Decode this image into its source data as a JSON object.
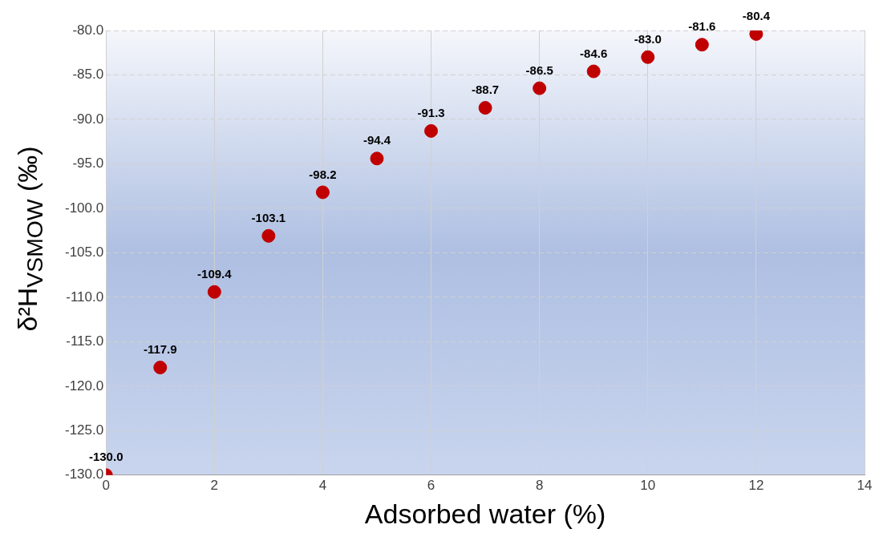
{
  "chart_data": {
    "type": "scatter",
    "xlabel": "Adsorbed water (%)",
    "ylabel": "δ²H$_{VSMOW}$ (‰)",
    "x": [
      0,
      1,
      2,
      3,
      4,
      5,
      6,
      7,
      8,
      9,
      10,
      11,
      12
    ],
    "series": [
      {
        "color": "#c00000",
        "values": [
          -130.0,
          -117.9,
          -109.4,
          -103.1,
          -98.2,
          -94.4,
          -91.3,
          -88.7,
          -86.5,
          -84.6,
          -83.0,
          -81.6,
          -80.4
        ],
        "value_labels": [
          "-130.0",
          "-117.9",
          "-109.4",
          "-103.1",
          "-98.2",
          "-94.4",
          "-91.3",
          "-88.7",
          "-86.5",
          "-84.6",
          "-83.0",
          "-81.6",
          "-80.4"
        ]
      }
    ],
    "xlim": [
      0,
      14
    ],
    "xticks": [
      0,
      2,
      4,
      6,
      8,
      10,
      12,
      14
    ],
    "ylim": [
      -130,
      -80
    ],
    "yticks": [
      {
        "value": -130,
        "label": "-130.0"
      },
      {
        "value": -125,
        "label": "-125.0"
      },
      {
        "value": -120,
        "label": "-120.0"
      },
      {
        "value": -115,
        "label": "-115.0"
      },
      {
        "value": -110,
        "label": "-110.0"
      },
      {
        "value": -105,
        "label": "-105.0"
      },
      {
        "value": -100,
        "label": "-100.0"
      },
      {
        "value": -95,
        "label": "-95.0"
      },
      {
        "value": -90,
        "label": "-90.0"
      },
      {
        "value": -85,
        "label": "-85.0"
      },
      {
        "value": -80,
        "label": "-80.0"
      }
    ],
    "grid": true,
    "marker": "circle",
    "legend": false
  }
}
